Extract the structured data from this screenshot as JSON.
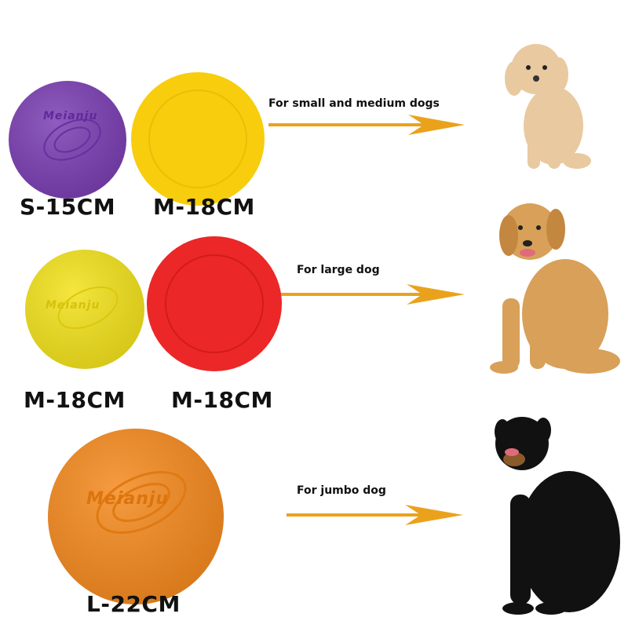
{
  "brand": "Meianju",
  "rows": [
    {
      "discs": [
        {
          "size": "S-15CM",
          "color": "#7b3fb3"
        },
        {
          "size": "M-18CM",
          "color": "#f7cd0e"
        }
      ],
      "caption": "For small and medium dogs",
      "dog": "poodle"
    },
    {
      "discs": [
        {
          "size": "M-18CM",
          "color": "#f3e21c"
        },
        {
          "size": "M-18CM",
          "color": "#ec2727"
        }
      ],
      "caption": "For large dog",
      "dog": "golden-retriever"
    },
    {
      "discs": [
        {
          "size": "L-22CM",
          "color": "#f58a1f"
        }
      ],
      "caption": "For jumbo dog",
      "dog": "rottweiler"
    }
  ],
  "arrow_color": "#eaa21c"
}
